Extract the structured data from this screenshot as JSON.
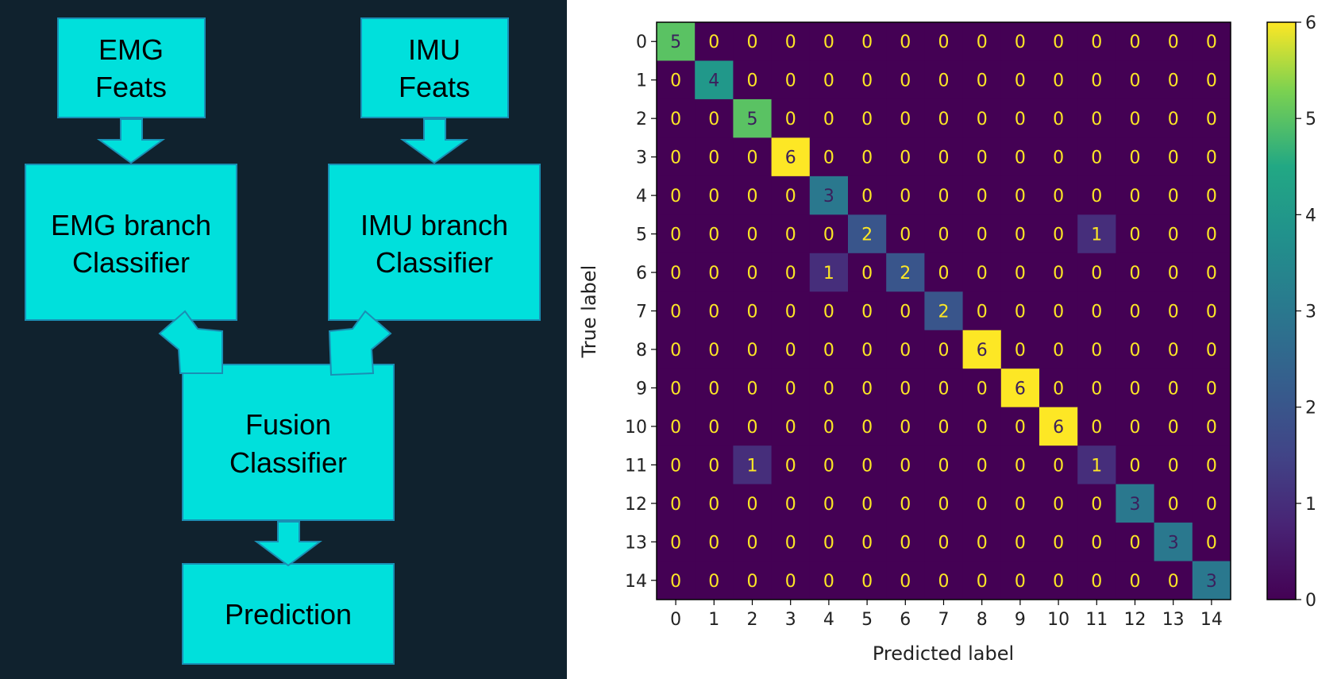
{
  "diagram": {
    "emg_feats": [
      "EMG",
      "Feats"
    ],
    "imu_feats": [
      "IMU",
      "Feats"
    ],
    "emg_branch": [
      "EMG branch",
      "Classifier"
    ],
    "imu_branch": [
      "IMU branch",
      "Classifier"
    ],
    "fusion": [
      "Fusion",
      "Classifier"
    ],
    "prediction": [
      "Prediction"
    ],
    "colors": {
      "background": "#10222e",
      "box_fill": "#00e0dc",
      "box_stroke": "#1a8fb4"
    }
  },
  "chart_data": {
    "type": "heatmap",
    "title": "",
    "xlabel": "Predicted label",
    "ylabel": "True label",
    "x_categories": [
      "0",
      "1",
      "2",
      "3",
      "4",
      "5",
      "6",
      "7",
      "8",
      "9",
      "10",
      "11",
      "12",
      "13",
      "14"
    ],
    "y_categories": [
      "0",
      "1",
      "2",
      "3",
      "4",
      "5",
      "6",
      "7",
      "8",
      "9",
      "10",
      "11",
      "12",
      "13",
      "14"
    ],
    "matrix": [
      [
        5,
        0,
        0,
        0,
        0,
        0,
        0,
        0,
        0,
        0,
        0,
        0,
        0,
        0,
        0
      ],
      [
        0,
        4,
        0,
        0,
        0,
        0,
        0,
        0,
        0,
        0,
        0,
        0,
        0,
        0,
        0
      ],
      [
        0,
        0,
        5,
        0,
        0,
        0,
        0,
        0,
        0,
        0,
        0,
        0,
        0,
        0,
        0
      ],
      [
        0,
        0,
        0,
        6,
        0,
        0,
        0,
        0,
        0,
        0,
        0,
        0,
        0,
        0,
        0
      ],
      [
        0,
        0,
        0,
        0,
        3,
        0,
        0,
        0,
        0,
        0,
        0,
        0,
        0,
        0,
        0
      ],
      [
        0,
        0,
        0,
        0,
        0,
        2,
        0,
        0,
        0,
        0,
        0,
        1,
        0,
        0,
        0
      ],
      [
        0,
        0,
        0,
        0,
        1,
        0,
        2,
        0,
        0,
        0,
        0,
        0,
        0,
        0,
        0
      ],
      [
        0,
        0,
        0,
        0,
        0,
        0,
        0,
        2,
        0,
        0,
        0,
        0,
        0,
        0,
        0
      ],
      [
        0,
        0,
        0,
        0,
        0,
        0,
        0,
        0,
        6,
        0,
        0,
        0,
        0,
        0,
        0
      ],
      [
        0,
        0,
        0,
        0,
        0,
        0,
        0,
        0,
        0,
        6,
        0,
        0,
        0,
        0,
        0
      ],
      [
        0,
        0,
        0,
        0,
        0,
        0,
        0,
        0,
        0,
        0,
        6,
        0,
        0,
        0,
        0
      ],
      [
        0,
        0,
        1,
        0,
        0,
        0,
        0,
        0,
        0,
        0,
        0,
        1,
        0,
        0,
        0
      ],
      [
        0,
        0,
        0,
        0,
        0,
        0,
        0,
        0,
        0,
        0,
        0,
        0,
        3,
        0,
        0
      ],
      [
        0,
        0,
        0,
        0,
        0,
        0,
        0,
        0,
        0,
        0,
        0,
        0,
        0,
        3,
        0
      ],
      [
        0,
        0,
        0,
        0,
        0,
        0,
        0,
        0,
        0,
        0,
        0,
        0,
        0,
        0,
        3
      ]
    ],
    "colorbar": {
      "min": 0,
      "max": 6,
      "ticks": [
        "0",
        "1",
        "2",
        "3",
        "4",
        "5",
        "6"
      ],
      "colormap": "viridis"
    },
    "grid": false
  }
}
